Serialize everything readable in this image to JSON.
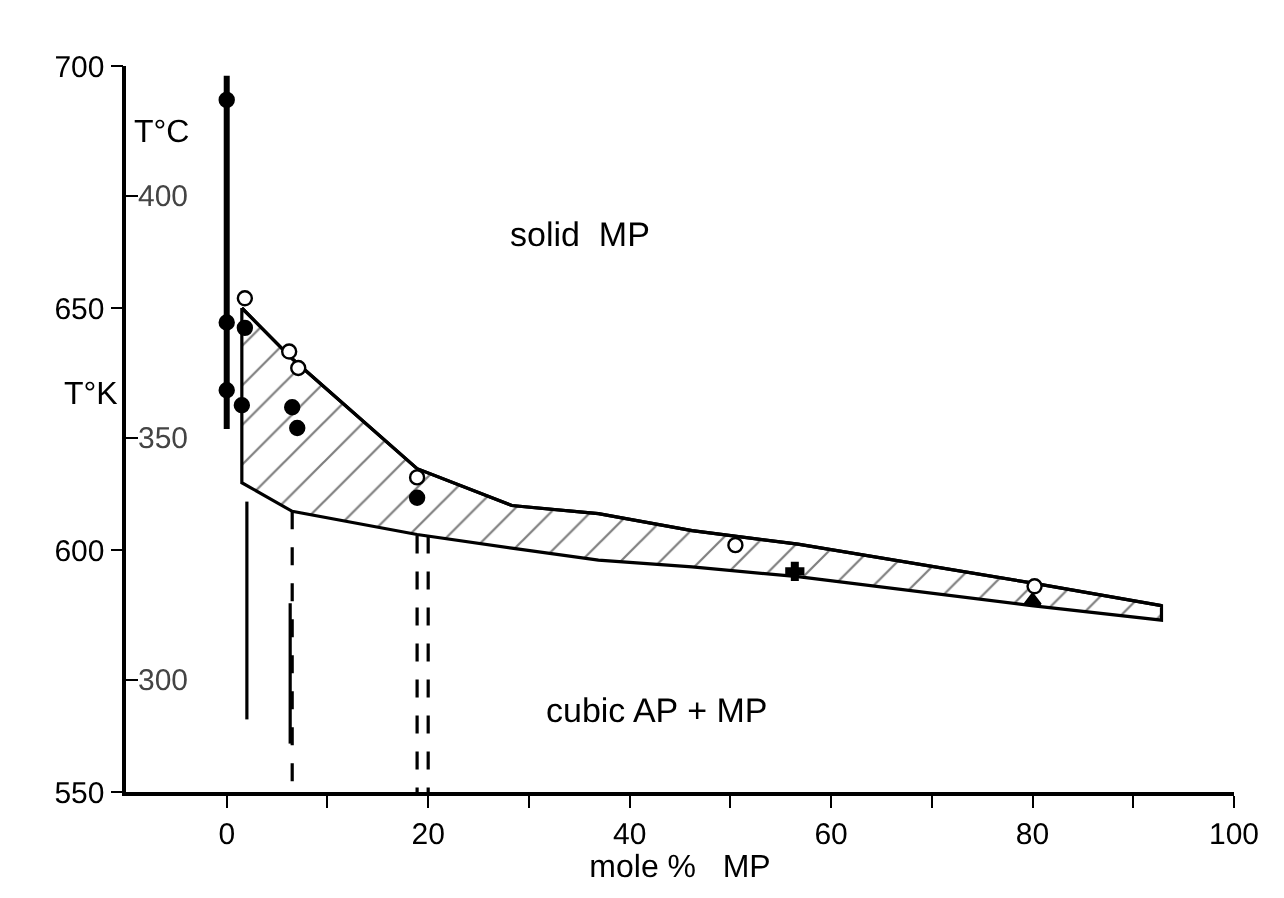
{
  "chart_data": {
    "type": "scatter",
    "xlabel": "mole %   MP",
    "ylabel": "T°K",
    "y2label": "T°C",
    "xlim": [
      -10,
      100
    ],
    "xticks": [
      0,
      {
        "value": 10,
        "label": null
      },
      20,
      {
        "value": 30,
        "label": null
      },
      40,
      {
        "value": 50,
        "label": null
      },
      60,
      {
        "value": 70,
        "label": null
      },
      80,
      {
        "value": 90,
        "label": null
      },
      100
    ],
    "ylim": [
      550,
      700
    ],
    "yticks": [
      550,
      600,
      650,
      700
    ],
    "y2lim": [
      276.85,
      426.85
    ],
    "y2ticks": [
      300,
      350,
      400
    ],
    "annotations": [
      "solid  MP",
      "cubic AP + MP"
    ],
    "series": [
      {
        "type": "line",
        "color": "#000000",
        "marker": "none",
        "x": [
          1.5,
          6.5,
          18.9,
          28.3,
          36.9,
          46.2,
          56.7,
          79.9,
          92.8
        ],
        "values": [
          650,
          639.5,
          616.8,
          609.2,
          607.5,
          604,
          601.2,
          593.2,
          588.5
        ],
        "upper": [
          650,
          639.5,
          616.8,
          609.2,
          607.5,
          604,
          601.2,
          593.2,
          588.5
        ],
        "lower": [
          613.9,
          608,
          603.2,
          600.4,
          597.9,
          596.5,
          594.5,
          588.5,
          585.5
        ]
      },
      {
        "color": "#ffffff",
        "marker": "circle",
        "x": [
          1.8,
          6.2,
          7.1,
          18.9,
          50.5,
          80.2
        ],
        "values": [
          652,
          641,
          637.6,
          615,
          601,
          592.5
        ]
      },
      {
        "color": "#000000",
        "marker": "circle",
        "x": [
          0,
          1.8,
          1.5,
          6.5,
          7,
          18.9,
          0,
          0
        ],
        "values": [
          647,
          645.9,
          629.9,
          629.5,
          625.2,
          610.8,
          693,
          633
        ]
      },
      {
        "color": "#000000",
        "marker": "cross",
        "x": [
          56.4
        ],
        "values": [
          595.6
        ]
      },
      {
        "color": "#000000",
        "marker": "triangle",
        "x": [
          80
        ],
        "values": [
          589.5
        ]
      },
      {
        "type": "line",
        "color": "#000000",
        "marker": "none",
        "line_style": "solid",
        "x": [
          0,
          0
        ],
        "values": [
          625,
          698
        ]
      },
      {
        "type": "line",
        "color": "#000000",
        "marker": "none",
        "line_style": "solid",
        "x": [
          2,
          2
        ],
        "values": [
          610,
          565
        ]
      },
      {
        "type": "line",
        "color": "#000000",
        "marker": "none",
        "line_style": "dashed",
        "x": [
          6.5,
          6.5
        ],
        "values": [
          608,
          550
        ]
      },
      {
        "type": "line",
        "color": "#000000",
        "marker": "none",
        "line_style": "solid",
        "x": [
          6.3,
          6.3
        ],
        "values": [
          589,
          560
        ]
      },
      {
        "type": "line",
        "color": "#000000",
        "marker": "none",
        "line_style": "dashed",
        "x": [
          18.9,
          18.9
        ],
        "values": [
          603,
          550
        ]
      },
      {
        "type": "line",
        "color": "#000000",
        "marker": "none",
        "line_style": "dashed",
        "x": [
          20,
          20
        ],
        "values": [
          603,
          550
        ]
      }
    ]
  }
}
